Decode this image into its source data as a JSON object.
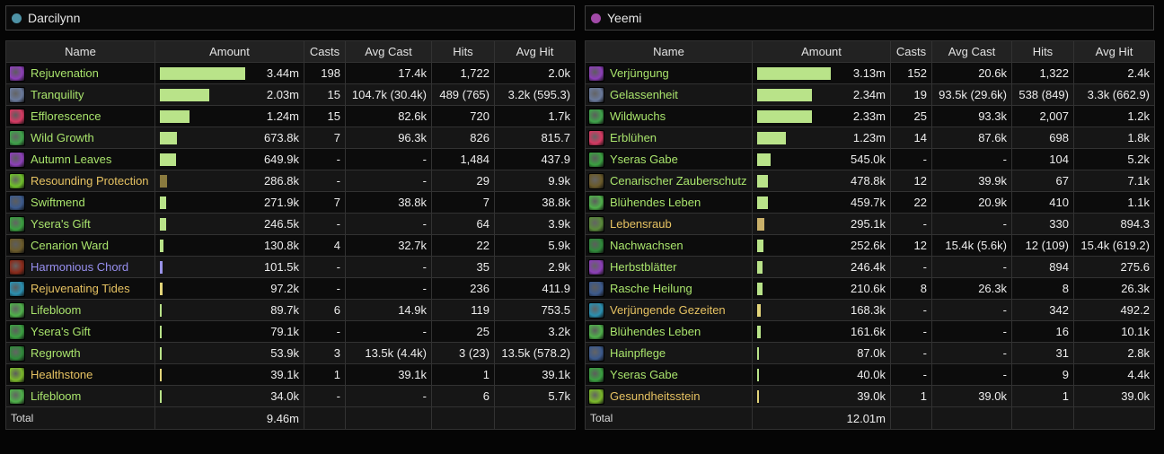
{
  "colors": {
    "holy": "#a9e46c",
    "yellow": "#e6c262",
    "purple": "#9890f0",
    "bar_default": "#b9e389",
    "bar_gold": "#e3d57a",
    "bar_brown": "#8a7a3e",
    "bar_purple": "#9a93e8"
  },
  "columns": [
    "Name",
    "Amount",
    "Casts",
    "Avg Cast",
    "Hits",
    "Avg Hit"
  ],
  "panels": [
    {
      "player": "Darcilynn",
      "dot_color": "#4e92a6",
      "total_label": "Total",
      "total_amount": "9.46m",
      "rows": [
        {
          "name": "Rejuvenation",
          "icon": "rejuvenation-icon",
          "icon_color": "#8c3fb8",
          "color": "g",
          "bar": 0.91,
          "bar_color": "#b9e389",
          "amount": "3.44m",
          "casts": "198",
          "avg_cast": "17.4k",
          "hits": "1,722",
          "avg_hit": "2.0k"
        },
        {
          "name": "Tranquility",
          "icon": "tranquility-icon",
          "icon_color": "#6a7a9c",
          "color": "g",
          "bar": 0.53,
          "bar_color": "#b9e389",
          "amount": "2.03m",
          "casts": "15",
          "avg_cast": "104.7k (30.4k)",
          "hits": "489 (765)",
          "avg_hit": "3.2k (595.3)"
        },
        {
          "name": "Efflorescence",
          "icon": "efflorescence-icon",
          "icon_color": "#d63a63",
          "color": "g",
          "bar": 0.32,
          "bar_color": "#b9e389",
          "amount": "1.24m",
          "casts": "15",
          "avg_cast": "82.6k",
          "hits": "720",
          "avg_hit": "1.7k"
        },
        {
          "name": "Wild Growth",
          "icon": "wild-growth-icon",
          "icon_color": "#3fa34a",
          "color": "g",
          "bar": 0.18,
          "bar_color": "#b9e389",
          "amount": "673.8k",
          "casts": "7",
          "avg_cast": "96.3k",
          "hits": "826",
          "avg_hit": "815.7"
        },
        {
          "name": "Autumn Leaves",
          "icon": "autumn-leaves-icon",
          "icon_color": "#8c3fb8",
          "color": "g",
          "bar": 0.17,
          "bar_color": "#b9e389",
          "amount": "649.9k",
          "casts": "-",
          "avg_cast": "-",
          "hits": "1,484",
          "avg_hit": "437.9"
        },
        {
          "name": "Resounding Protection",
          "icon": "resounding-protection-icon",
          "icon_color": "#6fbf2a",
          "color": "y",
          "bar": 0.075,
          "bar_color": "#8a7a3e",
          "amount": "286.8k",
          "casts": "-",
          "avg_cast": "-",
          "hits": "29",
          "avg_hit": "9.9k"
        },
        {
          "name": "Swiftmend",
          "icon": "swiftmend-icon",
          "icon_color": "#3c5a8c",
          "color": "g",
          "bar": 0.072,
          "bar_color": "#b9e389",
          "amount": "271.9k",
          "casts": "7",
          "avg_cast": "38.8k",
          "hits": "7",
          "avg_hit": "38.8k"
        },
        {
          "name": "Ysera's Gift",
          "icon": "yseras-gift-icon",
          "icon_color": "#3aa040",
          "color": "g",
          "bar": 0.065,
          "bar_color": "#b9e389",
          "amount": "246.5k",
          "casts": "-",
          "avg_cast": "-",
          "hits": "64",
          "avg_hit": "3.9k"
        },
        {
          "name": "Cenarion Ward",
          "icon": "cenarion-ward-icon",
          "icon_color": "#6a5a2a",
          "color": "g",
          "bar": 0.035,
          "bar_color": "#b9e389",
          "amount": "130.8k",
          "casts": "4",
          "avg_cast": "32.7k",
          "hits": "22",
          "avg_hit": "5.9k"
        },
        {
          "name": "Harmonious Chord",
          "icon": "harmonious-chord-icon",
          "icon_color": "#8a2a1a",
          "color": "p",
          "bar": 0.027,
          "bar_color": "#9a93e8",
          "amount": "101.5k",
          "casts": "-",
          "avg_cast": "-",
          "hits": "35",
          "avg_hit": "2.9k"
        },
        {
          "name": "Rejuvenating Tides",
          "icon": "rejuvenating-tides-icon",
          "icon_color": "#2a8fb0",
          "color": "y",
          "bar": 0.026,
          "bar_color": "#e3d57a",
          "amount": "97.2k",
          "casts": "-",
          "avg_cast": "-",
          "hits": "236",
          "avg_hit": "411.9"
        },
        {
          "name": "Lifebloom",
          "icon": "lifebloom-icon",
          "icon_color": "#4fb04a",
          "color": "g",
          "bar": 0.024,
          "bar_color": "#b9e389",
          "amount": "89.7k",
          "casts": "6",
          "avg_cast": "14.9k",
          "hits": "119",
          "avg_hit": "753.5"
        },
        {
          "name": "Ysera's Gift",
          "icon": "yseras-gift-icon",
          "icon_color": "#3aa040",
          "color": "g",
          "bar": 0.021,
          "bar_color": "#b9e389",
          "amount": "79.1k",
          "casts": "-",
          "avg_cast": "-",
          "hits": "25",
          "avg_hit": "3.2k"
        },
        {
          "name": "Regrowth",
          "icon": "regrowth-icon",
          "icon_color": "#2f8a3a",
          "color": "g",
          "bar": 0.014,
          "bar_color": "#b9e389",
          "amount": "53.9k",
          "casts": "3",
          "avg_cast": "13.5k (4.4k)",
          "hits": "3 (23)",
          "avg_hit": "13.5k (578.2)"
        },
        {
          "name": "Healthstone",
          "icon": "healthstone-icon",
          "icon_color": "#7ab82a",
          "color": "y",
          "bar": 0.01,
          "bar_color": "#e3d57a",
          "amount": "39.1k",
          "casts": "1",
          "avg_cast": "39.1k",
          "hits": "1",
          "avg_hit": "39.1k"
        },
        {
          "name": "Lifebloom",
          "icon": "lifebloom-icon",
          "icon_color": "#4fb04a",
          "color": "g",
          "bar": 0.009,
          "bar_color": "#b9e389",
          "amount": "34.0k",
          "casts": "-",
          "avg_cast": "-",
          "hits": "6",
          "avg_hit": "5.7k"
        }
      ]
    },
    {
      "player": "Yeemi",
      "dot_color": "#a24aa8",
      "total_label": "Total",
      "total_amount": "12.01m",
      "rows": [
        {
          "name": "Verjüngung",
          "icon": "rejuvenation-icon",
          "icon_color": "#8c3fb8",
          "color": "g",
          "bar": 0.79,
          "bar_color": "#b9e389",
          "amount": "3.13m",
          "casts": "152",
          "avg_cast": "20.6k",
          "hits": "1,322",
          "avg_hit": "2.4k"
        },
        {
          "name": "Gelassenheit",
          "icon": "tranquility-icon",
          "icon_color": "#6a7a9c",
          "color": "g",
          "bar": 0.59,
          "bar_color": "#b9e389",
          "amount": "2.34m",
          "casts": "19",
          "avg_cast": "93.5k (29.6k)",
          "hits": "538 (849)",
          "avg_hit": "3.3k (662.9)"
        },
        {
          "name": "Wildwuchs",
          "icon": "wild-growth-icon",
          "icon_color": "#3fa34a",
          "color": "g",
          "bar": 0.59,
          "bar_color": "#b9e389",
          "amount": "2.33m",
          "casts": "25",
          "avg_cast": "93.3k",
          "hits": "2,007",
          "avg_hit": "1.2k"
        },
        {
          "name": "Erblühen",
          "icon": "efflorescence-icon",
          "icon_color": "#d63a63",
          "color": "g",
          "bar": 0.31,
          "bar_color": "#b9e389",
          "amount": "1.23m",
          "casts": "14",
          "avg_cast": "87.6k",
          "hits": "698",
          "avg_hit": "1.8k"
        },
        {
          "name": "Yseras Gabe",
          "icon": "yseras-gift-icon",
          "icon_color": "#3aa040",
          "color": "g",
          "bar": 0.14,
          "bar_color": "#b9e389",
          "amount": "545.0k",
          "casts": "-",
          "avg_cast": "-",
          "hits": "104",
          "avg_hit": "5.2k"
        },
        {
          "name": "Cenarischer Zauberschutz",
          "icon": "cenarion-ward-icon",
          "icon_color": "#6a5a2a",
          "color": "g",
          "bar": 0.12,
          "bar_color": "#b9e389",
          "amount": "478.8k",
          "casts": "12",
          "avg_cast": "39.9k",
          "hits": "67",
          "avg_hit": "7.1k"
        },
        {
          "name": "Blühendes Leben",
          "icon": "lifebloom-icon",
          "icon_color": "#4fb04a",
          "color": "g",
          "bar": 0.115,
          "bar_color": "#b9e389",
          "amount": "459.7k",
          "casts": "22",
          "avg_cast": "20.9k",
          "hits": "410",
          "avg_hit": "1.1k"
        },
        {
          "name": "Lebensraub",
          "icon": "lebensraub-icon",
          "icon_color": "#5a8a3a",
          "color": "y",
          "bar": 0.074,
          "bar_color": "#c9b06a",
          "amount": "295.1k",
          "casts": "-",
          "avg_cast": "-",
          "hits": "330",
          "avg_hit": "894.3"
        },
        {
          "name": "Nachwachsen",
          "icon": "regrowth-icon",
          "icon_color": "#2f8a3a",
          "color": "g",
          "bar": 0.063,
          "bar_color": "#b9e389",
          "amount": "252.6k",
          "casts": "12",
          "avg_cast": "15.4k (5.6k)",
          "hits": "12 (109)",
          "avg_hit": "15.4k (619.2)"
        },
        {
          "name": "Herbstblätter",
          "icon": "autumn-leaves-icon",
          "icon_color": "#8c3fb8",
          "color": "g",
          "bar": 0.062,
          "bar_color": "#b9e389",
          "amount": "246.4k",
          "casts": "-",
          "avg_cast": "-",
          "hits": "894",
          "avg_hit": "275.6"
        },
        {
          "name": "Rasche Heilung",
          "icon": "swiftmend-icon",
          "icon_color": "#3c5a8c",
          "color": "g",
          "bar": 0.053,
          "bar_color": "#b9e389",
          "amount": "210.6k",
          "casts": "8",
          "avg_cast": "26.3k",
          "hits": "8",
          "avg_hit": "26.3k"
        },
        {
          "name": "Verjüngende Gezeiten",
          "icon": "rejuvenating-tides-icon",
          "icon_color": "#2a8fb0",
          "color": "y",
          "bar": 0.042,
          "bar_color": "#e3d57a",
          "amount": "168.3k",
          "casts": "-",
          "avg_cast": "-",
          "hits": "342",
          "avg_hit": "492.2"
        },
        {
          "name": "Blühendes Leben",
          "icon": "lifebloom-icon",
          "icon_color": "#4fb04a",
          "color": "g",
          "bar": 0.04,
          "bar_color": "#b9e389",
          "amount": "161.6k",
          "casts": "-",
          "avg_cast": "-",
          "hits": "16",
          "avg_hit": "10.1k"
        },
        {
          "name": "Hainpflege",
          "icon": "hainpflege-icon",
          "icon_color": "#3c5a8c",
          "color": "g",
          "bar": 0.022,
          "bar_color": "#b9e389",
          "amount": "87.0k",
          "casts": "-",
          "avg_cast": "-",
          "hits": "31",
          "avg_hit": "2.8k"
        },
        {
          "name": "Yseras Gabe",
          "icon": "yseras-gift-icon",
          "icon_color": "#3aa040",
          "color": "g",
          "bar": 0.01,
          "bar_color": "#b9e389",
          "amount": "40.0k",
          "casts": "-",
          "avg_cast": "-",
          "hits": "9",
          "avg_hit": "4.4k"
        },
        {
          "name": "Gesundheitsstein",
          "icon": "healthstone-icon",
          "icon_color": "#7ab82a",
          "color": "y",
          "bar": 0.01,
          "bar_color": "#e3d57a",
          "amount": "39.0k",
          "casts": "1",
          "avg_cast": "39.0k",
          "hits": "1",
          "avg_hit": "39.0k"
        }
      ]
    }
  ]
}
